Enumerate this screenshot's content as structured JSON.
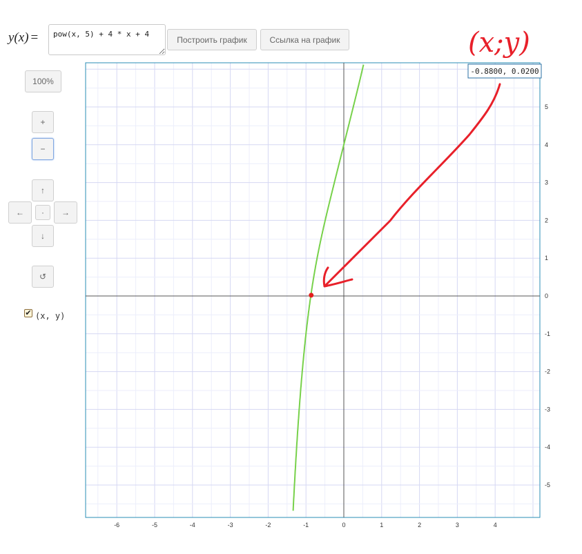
{
  "header": {
    "function_label": "y(x)",
    "equals": "=",
    "formula_value": "pow(x, 5) + 4 * x + 4",
    "plot_button": "Построить график",
    "link_button": "Ссылка на график"
  },
  "controls": {
    "zoom_reset": "100%",
    "zoom_in": "+",
    "zoom_out": "−",
    "pan_up": "↑",
    "pan_left": "←",
    "pan_center": "·",
    "pan_right": "→",
    "pan_down": "↓",
    "reset": "↺",
    "coords_checkbox_label": "(x, y)",
    "coords_checkbox_checked": "✔"
  },
  "graph": {
    "x_ticks": [
      "-6",
      "-5",
      "-4",
      "-3",
      "-2",
      "-1",
      "0",
      "1",
      "2",
      "3",
      "4"
    ],
    "y_ticks": [
      "5",
      "4",
      "3",
      "2",
      "1",
      "0",
      "-1",
      "-2",
      "-3",
      "-4",
      "-5"
    ],
    "cursor_readout": "-0.8800, 0.0200",
    "curve_color": "#77d14a",
    "marker_color": "#e31e1e",
    "annotation_text": "(x;y)",
    "annotation_color": "#e8202a"
  }
}
